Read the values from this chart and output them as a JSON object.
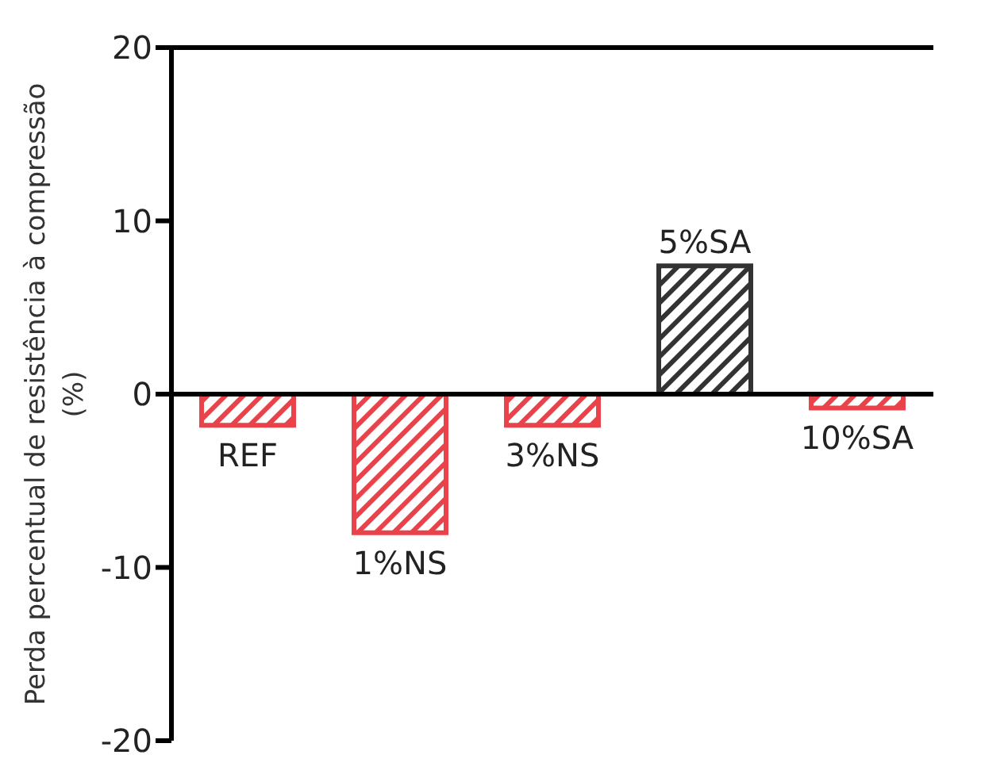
{
  "chart_data": {
    "type": "bar",
    "ylabel": "Perda percentual de resistência à compressão (%)",
    "categories": [
      "REF",
      "1%NS",
      "3%NS",
      "5%SA",
      "10%SA"
    ],
    "values": [
      -1.8,
      -8.0,
      -1.8,
      7.4,
      -0.8
    ],
    "colors": [
      "#e8424a",
      "#e8424a",
      "#e8424a",
      "#333333",
      "#e8424a"
    ],
    "ylim": [
      -20,
      20
    ],
    "yticks": [
      -20,
      -10,
      0,
      10,
      20
    ],
    "tick_labels": "y"
  }
}
